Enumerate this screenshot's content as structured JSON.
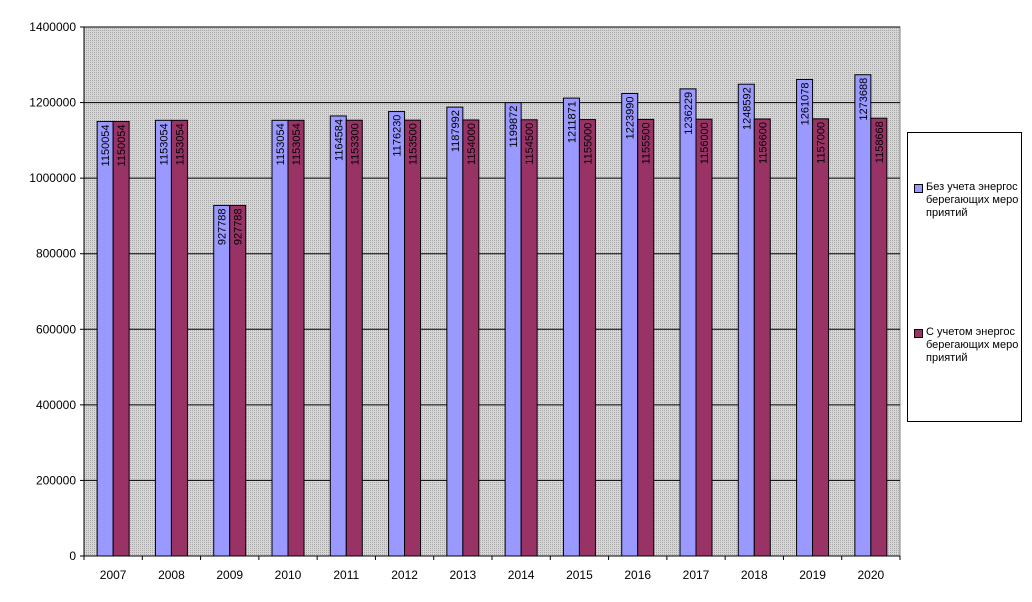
{
  "chart_data": {
    "type": "bar",
    "categories": [
      "2007",
      "2008",
      "2009",
      "2010",
      "2011",
      "2012",
      "2013",
      "2014",
      "2015",
      "2016",
      "2017",
      "2018",
      "2019",
      "2020"
    ],
    "series": [
      {
        "name": "Без учета энергосберегающих мероприятий",
        "color": "#9999ff",
        "values": [
          1150054,
          1153054,
          927788,
          1153054,
          1164584,
          1176230,
          1187992,
          1199872,
          1211871,
          1223990,
          1236229,
          1248592,
          1261078,
          1273688
        ],
        "labels": [
          "1150054",
          "1153054",
          "927788",
          "1153054",
          "1164584",
          "1176230",
          "1187992",
          "1199872",
          "1211871",
          "1223990",
          "1236229",
          "1248592",
          "1261078",
          "1273688"
        ]
      },
      {
        "name": "С учетом энергосберегающих мероприятий",
        "color": "#993366",
        "values": [
          1150054,
          1153054,
          927788,
          1153054,
          1153300,
          1153500,
          1154000,
          1154500,
          1155000,
          1155500,
          1156000,
          1156600,
          1157000,
          1158668
        ],
        "labels": [
          "1150054",
          "1153054",
          "927788",
          "1153054",
          "1153300",
          "1153500",
          "1154000",
          "1154500",
          "1155000",
          "1155500",
          "1156000",
          "1156600",
          "1157000",
          "1158668"
        ]
      }
    ],
    "ylim": [
      0,
      1400000
    ],
    "yticks": [
      "0",
      "200000",
      "400000",
      "600000",
      "800000",
      "1000000",
      "1200000",
      "1400000"
    ],
    "ytick_values": [
      0,
      200000,
      400000,
      600000,
      800000,
      1000000,
      1200000,
      1400000
    ],
    "grid": true,
    "legend_position": "right",
    "plot_background": "#c0c0c0"
  }
}
